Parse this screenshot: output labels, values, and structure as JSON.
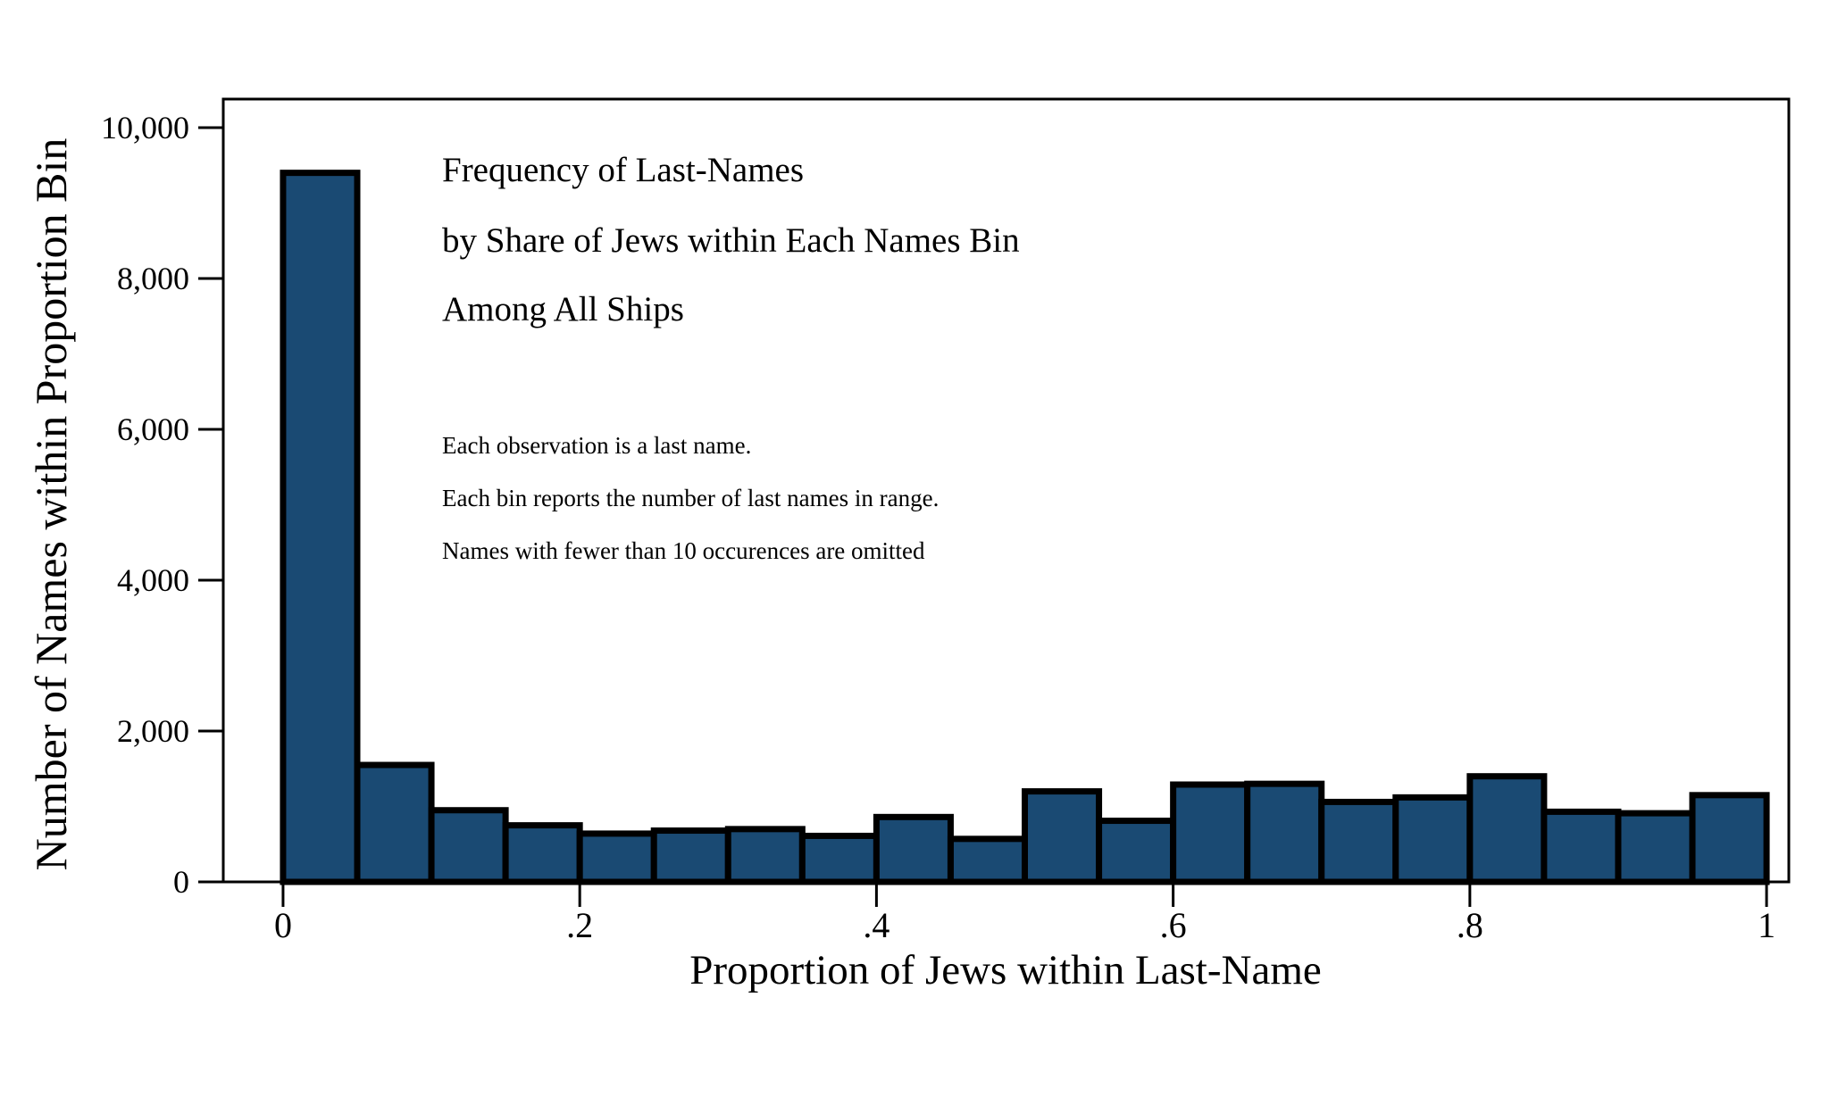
{
  "chart_data": {
    "type": "bar",
    "title": "Frequency of Last-Names by Share of Jews within Each Names Bin Among All Ships",
    "title_lines": [
      "Frequency of Last-Names",
      "by Share of Jews within Each Names Bin",
      "Among All Ships"
    ],
    "notes": [
      "Each observation is a last name.",
      "Each bin reports the number of last names in range.",
      "Names with fewer than 10 occurences are omitted"
    ],
    "xlabel": "Proportion of Jews within Last-Name",
    "ylabel": "Number of Names within Proportion Bin",
    "bin_start": 0,
    "bin_width": 0.05,
    "values": [
      9400,
      1550,
      950,
      750,
      640,
      680,
      700,
      610,
      860,
      570,
      1200,
      810,
      1290,
      1300,
      1060,
      1120,
      1400,
      930,
      910,
      1150
    ],
    "x_ticks": {
      "values": [
        0,
        0.2,
        0.4,
        0.6,
        0.8,
        1
      ],
      "labels": [
        "0",
        ".2",
        ".4",
        ".6",
        ".8",
        "1"
      ]
    },
    "y_ticks": {
      "values": [
        0,
        2000,
        4000,
        6000,
        8000,
        10000
      ],
      "labels": [
        "0",
        "2,000",
        "4,000",
        "6,000",
        "8,000",
        "10,000"
      ]
    },
    "xlim": [
      -0.0403,
      1.015
    ],
    "ylim": [
      0,
      10378
    ],
    "grid": false,
    "legend": false,
    "colors": {
      "bar_fill": "#1a4a73",
      "bar_border": "#000000",
      "axis": "#000000",
      "text": "#000000",
      "background": "#ffffff"
    }
  }
}
